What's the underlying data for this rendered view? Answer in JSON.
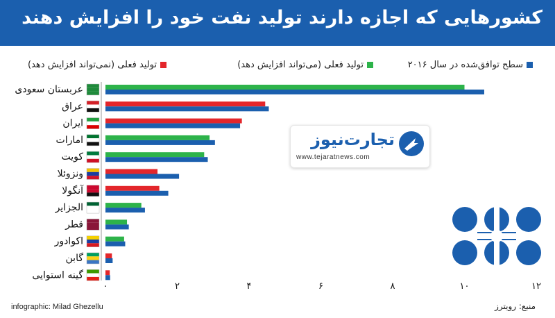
{
  "header": {
    "title": "کشورهایی که اجازه دارند تولید نفت خود را افزایش دهند",
    "background": "#1b5fae"
  },
  "legend": {
    "items": [
      {
        "label": "سطح توافق‌شده در سال ۲۰۱۶",
        "color": "#1b5fae"
      },
      {
        "label": "تولید فعلی (می‌تواند افزایش دهد)",
        "color": "#2db34a"
      },
      {
        "label": "تولید فعلی (نمی‌تواند افزایش دهد)",
        "color": "#e3262b"
      }
    ]
  },
  "chart_data": {
    "type": "bar",
    "orientation": "horizontal",
    "categories": [
      "عربستان سعودی",
      "عراق",
      "ایران",
      "امارات",
      "کویت",
      "ونزوئلا",
      "آنگولا",
      "الجزایر",
      "قطر",
      "اکوادور",
      "گابن",
      "گینه استوایی"
    ],
    "series": [
      {
        "name": "سطح توافق‌شده در سال ۲۰۱۶",
        "color": "#1b5fae",
        "values": [
          10.55,
          4.55,
          3.75,
          3.05,
          2.85,
          2.05,
          1.75,
          1.1,
          0.65,
          0.55,
          0.2,
          0.13
        ]
      },
      {
        "name": "تولید فعلی",
        "values": [
          10.0,
          4.45,
          3.8,
          2.9,
          2.75,
          1.45,
          1.5,
          1.0,
          0.6,
          0.52,
          0.18,
          0.12
        ],
        "colors": [
          "#2db34a",
          "#e3262b",
          "#e3262b",
          "#2db34a",
          "#2db34a",
          "#e3262b",
          "#e3262b",
          "#2db34a",
          "#2db34a",
          "#2db34a",
          "#e3262b",
          "#e3262b"
        ]
      }
    ],
    "xlim": [
      0,
      12
    ],
    "xticks": [
      0,
      2,
      4,
      6,
      8,
      10,
      12
    ],
    "tick_labels": [
      "۰",
      "۲",
      "۴",
      "۶",
      "۸",
      "۱۰",
      "۱۲"
    ],
    "grid": false
  },
  "footer": {
    "credit": "infographic: Milad Ghezellu",
    "source": "منبع: رویترز"
  },
  "watermark": {
    "name": "تجارت‌نیوز",
    "url": "www.tejaratnews.com"
  }
}
